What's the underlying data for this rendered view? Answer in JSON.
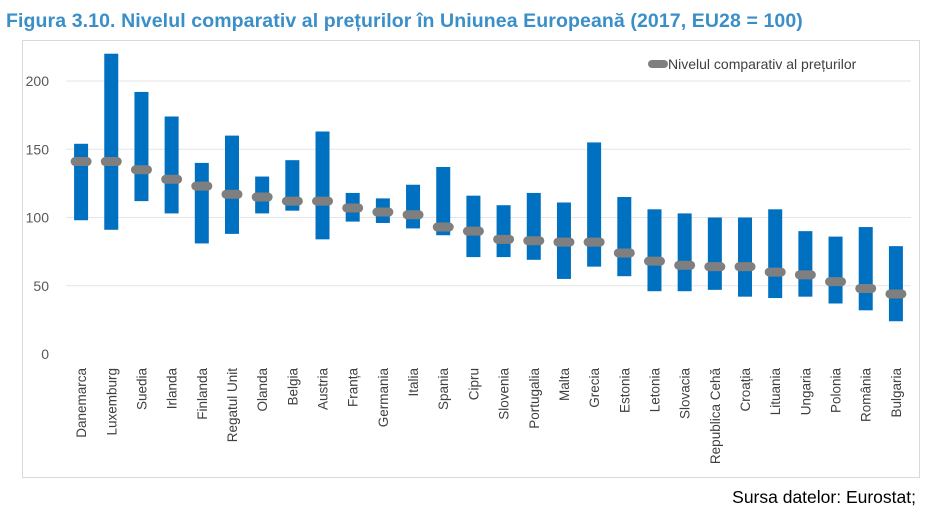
{
  "title": "Figura 3.10. Nivelul comparativ al prețurilor în Uniunea Europeană (2017, EU28 = 100)",
  "source": "Sursa datelor: Eurostat;",
  "chart_data": {
    "type": "bar",
    "subtype": "floating range bars with average marker",
    "title": "Figura 3.10. Nivelul comparativ al prețurilor în Uniunea Europeană (2017, EU28 = 100)",
    "xlabel": "",
    "ylabel": "",
    "ylim": [
      0,
      220
    ],
    "yticks": [
      0,
      50,
      100,
      150,
      200
    ],
    "grid": true,
    "legend_position": "top-right",
    "colors": {
      "range": "#0070c0",
      "marker": "#7f7f7f",
      "grid": "#e5e5e5"
    },
    "categories": [
      "Danemarca",
      "Luxemburg",
      "Suedia",
      "Irlanda",
      "Finlanda",
      "Regatul Unit",
      "Olanda",
      "Belgia",
      "Austria",
      "Franța",
      "Germania",
      "Italia",
      "Spania",
      "Cipru",
      "Slovenia",
      "Portugalia",
      "Malta",
      "Grecia",
      "Estonia",
      "Letonia",
      "Slovacia",
      "Republica Cehă",
      "Croația",
      "Lituania",
      "Ungaria",
      "Polonia",
      "România",
      "Bulgaria"
    ],
    "series": [
      {
        "name": "Nivelul comparativ al prețurilor",
        "values": [
          141,
          141,
          135,
          128,
          123,
          117,
          115,
          112,
          112,
          107,
          104,
          102,
          93,
          90,
          84,
          83,
          82,
          82,
          74,
          68,
          65,
          64,
          64,
          60,
          58,
          53,
          48,
          44
        ]
      }
    ],
    "ranges": {
      "min": [
        98,
        91,
        112,
        103,
        81,
        88,
        103,
        105,
        84,
        97,
        96,
        92,
        87,
        71,
        71,
        69,
        55,
        64,
        57,
        46,
        46,
        47,
        42,
        41,
        42,
        37,
        32,
        24
      ],
      "max": [
        154,
        220,
        192,
        174,
        140,
        160,
        130,
        142,
        163,
        118,
        114,
        124,
        137,
        116,
        109,
        118,
        111,
        155,
        115,
        106,
        103,
        100,
        100,
        106,
        90,
        86,
        93,
        79
      ]
    }
  }
}
